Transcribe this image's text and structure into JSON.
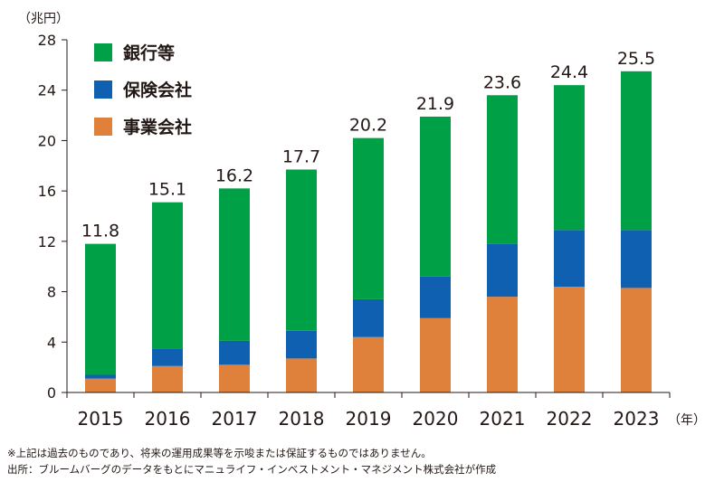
{
  "chart_data": {
    "type": "bar",
    "stacked": true,
    "y_unit": "（兆円）",
    "x_unit": "（年）",
    "categories": [
      "2015",
      "2016",
      "2017",
      "2018",
      "2019",
      "2020",
      "2021",
      "2022",
      "2023"
    ],
    "series": [
      {
        "name": "事業会社",
        "color": "#e0813b",
        "values": [
          1.1,
          2.1,
          2.2,
          2.7,
          4.4,
          5.9,
          7.6,
          8.4,
          8.3
        ]
      },
      {
        "name": "保険会社",
        "color": "#0f60b0",
        "values": [
          0.3,
          1.4,
          1.9,
          2.2,
          3.0,
          3.3,
          4.2,
          4.5,
          4.6
        ]
      },
      {
        "name": "銀行等",
        "color": "#00a146",
        "values": [
          10.4,
          11.6,
          12.1,
          12.8,
          12.8,
          12.7,
          11.8,
          11.5,
          12.6
        ]
      }
    ],
    "totals": [
      "11.8",
      "15.1",
      "16.2",
      "17.7",
      "20.2",
      "21.9",
      "23.6",
      "24.4",
      "25.5"
    ],
    "yticks": [
      "0",
      "4",
      "8",
      "12",
      "16",
      "20",
      "24",
      "28"
    ],
    "ylim": [
      0,
      28
    ],
    "legend": {
      "position": "top-left",
      "order": [
        "銀行等",
        "保険会社",
        "事業会社"
      ]
    },
    "grid": false
  },
  "notes": {
    "line1": "※上記は過去のものであり、将来の運用成果等を示唆または保証するものではありません。",
    "line2": "出所：ブルームバーグのデータをもとにマニュライフ・インベストメント・マネジメント株式会社が作成"
  }
}
